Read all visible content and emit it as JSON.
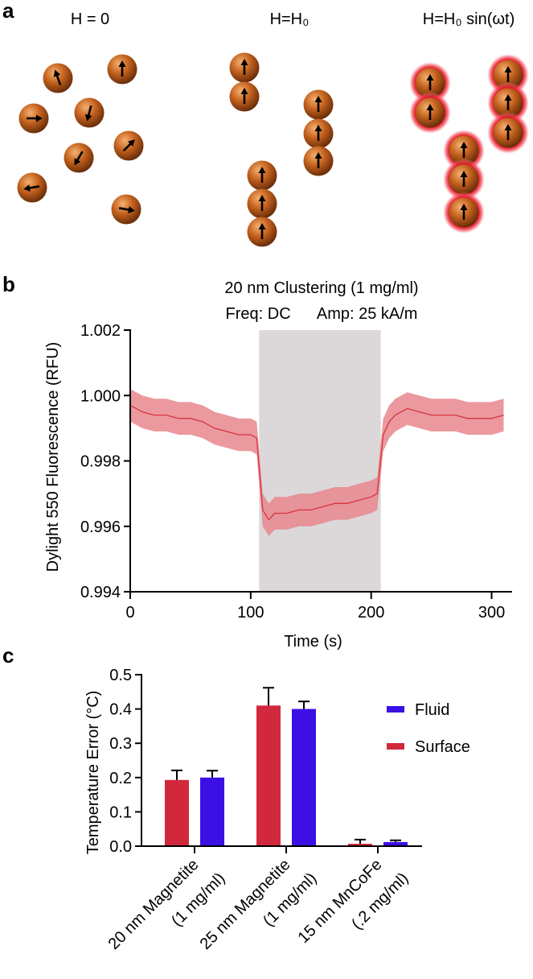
{
  "panel_a": {
    "label": "a",
    "titles": [
      "H = 0",
      "H=H₀",
      "H=H₀ sin(ωt)"
    ]
  },
  "chart_data": [
    {
      "type": "line",
      "panel_label": "b",
      "title": "20 nm Clustering (1 mg/ml)",
      "subtitle": "Freq: DC      Amp: 25 kA/m",
      "x_label": "Time (s)",
      "y_label": "Dylight 550 Fluorescence (RFU)",
      "x": [
        0,
        10,
        20,
        30,
        40,
        50,
        60,
        70,
        80,
        90,
        100,
        105,
        110,
        115,
        120,
        130,
        140,
        150,
        160,
        170,
        180,
        190,
        200,
        205,
        210,
        215,
        220,
        230,
        240,
        250,
        260,
        270,
        280,
        290,
        300,
        310
      ],
      "series": [
        {
          "color": "#d9333f",
          "band_color": "#e8878d",
          "values": [
            0.9997,
            0.9995,
            0.9994,
            0.9994,
            0.9993,
            0.9993,
            0.9992,
            0.999,
            0.9989,
            0.9988,
            0.9988,
            0.9987,
            0.9965,
            0.9962,
            0.9964,
            0.9964,
            0.9965,
            0.9965,
            0.9966,
            0.9967,
            0.9967,
            0.9968,
            0.9969,
            0.997,
            0.9988,
            0.9992,
            0.9994,
            0.9996,
            0.9995,
            0.9994,
            0.9994,
            0.9994,
            0.9993,
            0.9993,
            0.9993,
            0.9994
          ],
          "error": 0.0005
        }
      ],
      "highlight_x": [
        107,
        208
      ],
      "highlight_color": "#dcd8da",
      "xlim": [
        0,
        317
      ],
      "xticks": [
        0,
        100,
        200,
        300
      ],
      "ylim": [
        0.994,
        1.002
      ],
      "yticks": [
        0.994,
        0.996,
        0.998,
        {
          "value": 1.0,
          "label": "1.000"
        },
        1.002
      ]
    },
    {
      "type": "bar",
      "panel_label": "c",
      "y_label": "Temperature Error (°C)",
      "categories": [
        [
          "20 nm Magnetite",
          "(1 mg/ml)"
        ],
        [
          "25 nm Magnetite",
          "(1 mg/ml)"
        ],
        [
          "15 nm MnCoFe",
          "(.2 mg/ml)"
        ]
      ],
      "series": [
        {
          "name": "Surface",
          "color": "#d2283c",
          "values": [
            0.193,
            0.41,
            0.007
          ],
          "errors": [
            0.028,
            0.052,
            0.012
          ]
        },
        {
          "name": "Fluid",
          "color": "#3a10e5",
          "values": [
            0.2,
            0.4,
            0.012
          ],
          "errors": [
            0.02,
            0.022,
            0.005
          ]
        }
      ],
      "ylim": [
        0,
        0.5
      ],
      "yticks": [
        {
          "value": 0,
          "label": "0.0"
        },
        0.1,
        0.2,
        0.3,
        0.4,
        0.5
      ]
    }
  ]
}
